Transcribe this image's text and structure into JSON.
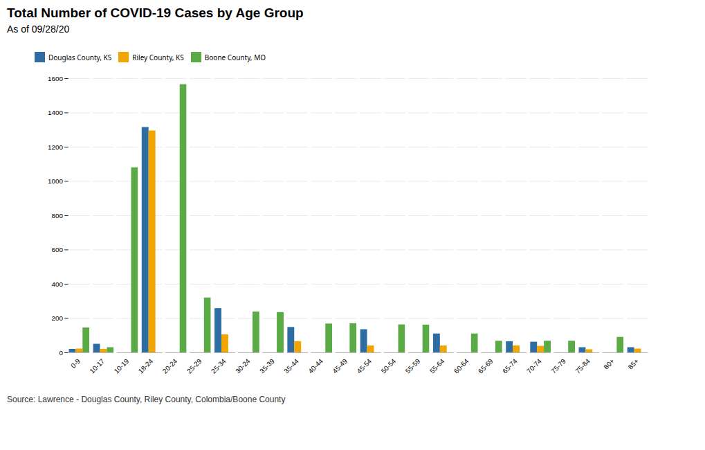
{
  "chart_data": {
    "type": "bar",
    "title": "Total Number of COVID-19 Cases by Age Group",
    "subtitle": "As of 09/28/20",
    "caption": "Source: Lawrence - Douglas County, Riley County, Colombia/Boone County",
    "categories": [
      "0-9",
      "10-17",
      "10-19",
      "18-24",
      "20-24",
      "25-29",
      "25-34",
      "30-24",
      "35-39",
      "35-44",
      "40-44",
      "45-49",
      "45-54",
      "50-54",
      "55-59",
      "55-64",
      "60-64",
      "65-69",
      "65-74",
      "70-74",
      "75-79",
      "75-84",
      "80+",
      "85+"
    ],
    "series": [
      {
        "name": "Douglas County, KS",
        "color": "#2e6da4",
        "values": [
          20,
          50,
          0,
          1315,
          0,
          0,
          258,
          0,
          0,
          148,
          0,
          0,
          135,
          0,
          0,
          110,
          0,
          0,
          65,
          62,
          0,
          30,
          0,
          30
        ]
      },
      {
        "name": "Riley County, KS",
        "color": "#f0a500",
        "values": [
          22,
          20,
          0,
          1295,
          0,
          0,
          105,
          0,
          0,
          65,
          0,
          0,
          40,
          0,
          0,
          40,
          0,
          0,
          40,
          38,
          0,
          18,
          0,
          22
        ]
      },
      {
        "name": "Boone County, MO",
        "color": "#5aaa46",
        "values": [
          145,
          30,
          1080,
          0,
          1565,
          320,
          0,
          238,
          235,
          0,
          168,
          170,
          0,
          163,
          162,
          0,
          110,
          68,
          0,
          68,
          68,
          0,
          90,
          0
        ]
      }
    ],
    "ylim": [
      0,
      1600
    ],
    "yticks": [
      0,
      200,
      400,
      600,
      800,
      1000,
      1200,
      1400,
      1600
    ],
    "grid": true,
    "legend": "upper left"
  }
}
